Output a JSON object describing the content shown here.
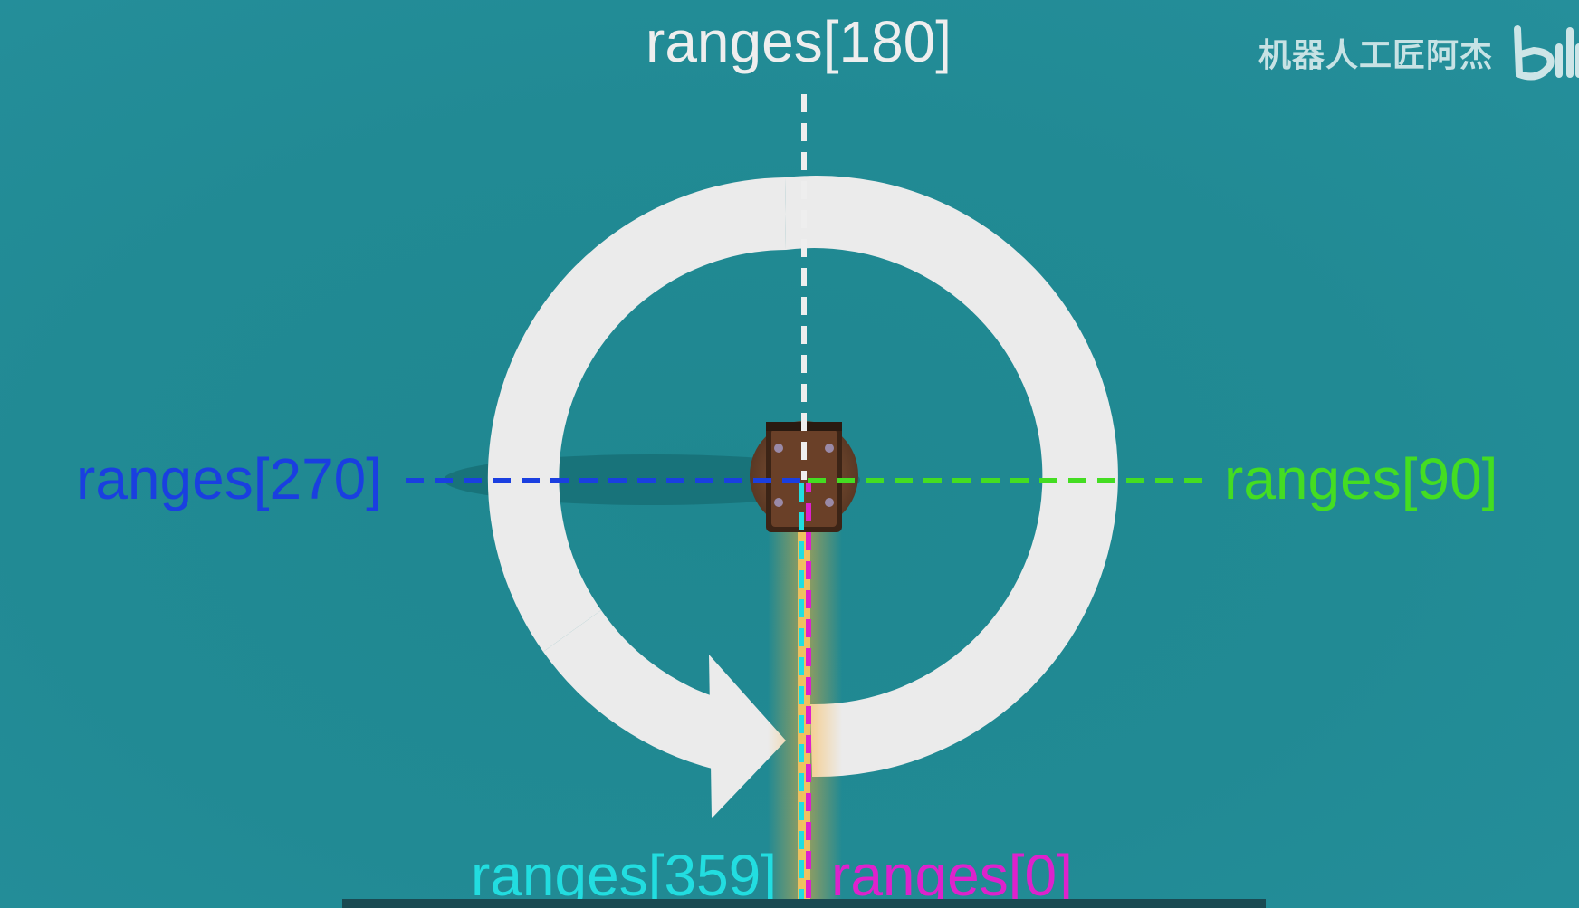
{
  "labels": {
    "top": "ranges[180]",
    "left": "ranges[270]",
    "right": "ranges[90]",
    "bottom_left": "ranges[359]",
    "bottom_right": "ranges[0]"
  },
  "watermark": {
    "text": "机器人工匠阿杰",
    "logo": "bilibili-logo"
  },
  "colors": {
    "background": "#208890",
    "ring": "#ebebeb",
    "ranges_180": "#eeeeee",
    "ranges_270": "#1a3fe0",
    "ranges_90": "#44dd22",
    "ranges_359": "#22dde0",
    "ranges_0": "#dd22cc",
    "laser_beam": "#ffb030"
  },
  "icons": {
    "ring": "clockwise-circular-arrow",
    "robot": "robot-top-view"
  }
}
